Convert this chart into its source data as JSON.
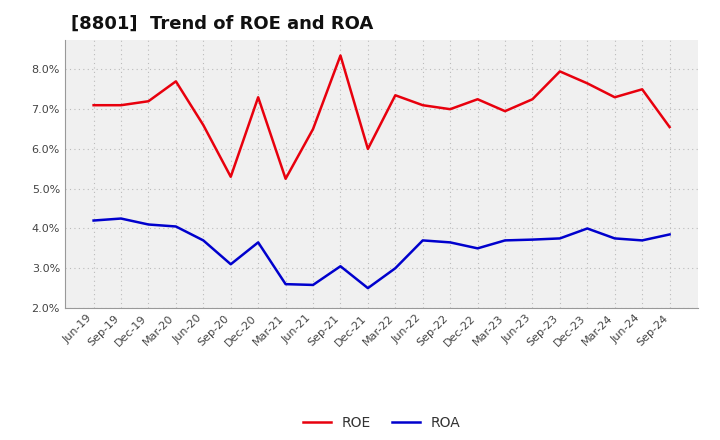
{
  "title": "[8801]  Trend of ROE and ROA",
  "x_labels": [
    "Jun-19",
    "Sep-19",
    "Dec-19",
    "Mar-20",
    "Jun-20",
    "Sep-20",
    "Dec-20",
    "Mar-21",
    "Jun-21",
    "Sep-21",
    "Dec-21",
    "Mar-22",
    "Jun-22",
    "Sep-22",
    "Dec-22",
    "Mar-23",
    "Jun-23",
    "Sep-23",
    "Dec-23",
    "Mar-24",
    "Jun-24",
    "Sep-24"
  ],
  "roe": [
    7.1,
    7.1,
    7.2,
    7.7,
    6.6,
    5.3,
    7.3,
    5.25,
    6.5,
    8.35,
    6.0,
    7.35,
    7.1,
    7.0,
    7.25,
    6.95,
    7.25,
    7.95,
    7.65,
    7.3,
    7.5,
    6.55
  ],
  "roa": [
    4.2,
    4.25,
    4.1,
    4.05,
    3.7,
    3.1,
    3.65,
    2.6,
    2.58,
    3.05,
    2.5,
    3.0,
    3.7,
    3.65,
    3.5,
    3.7,
    3.72,
    3.75,
    4.0,
    3.75,
    3.7,
    3.85
  ],
  "roe_color": "#e8000d",
  "roa_color": "#0000cd",
  "ylim_min": 2.0,
  "ylim_max": 8.75,
  "yticks": [
    2.0,
    3.0,
    4.0,
    5.0,
    6.0,
    7.0,
    8.0
  ],
  "grid_color": "#bbbbbb",
  "bg_color": "#ffffff",
  "plot_bg_color": "#f0f0f0",
  "line_width": 1.8,
  "title_fontsize": 13,
  "tick_fontsize": 8,
  "legend_fontsize": 10
}
